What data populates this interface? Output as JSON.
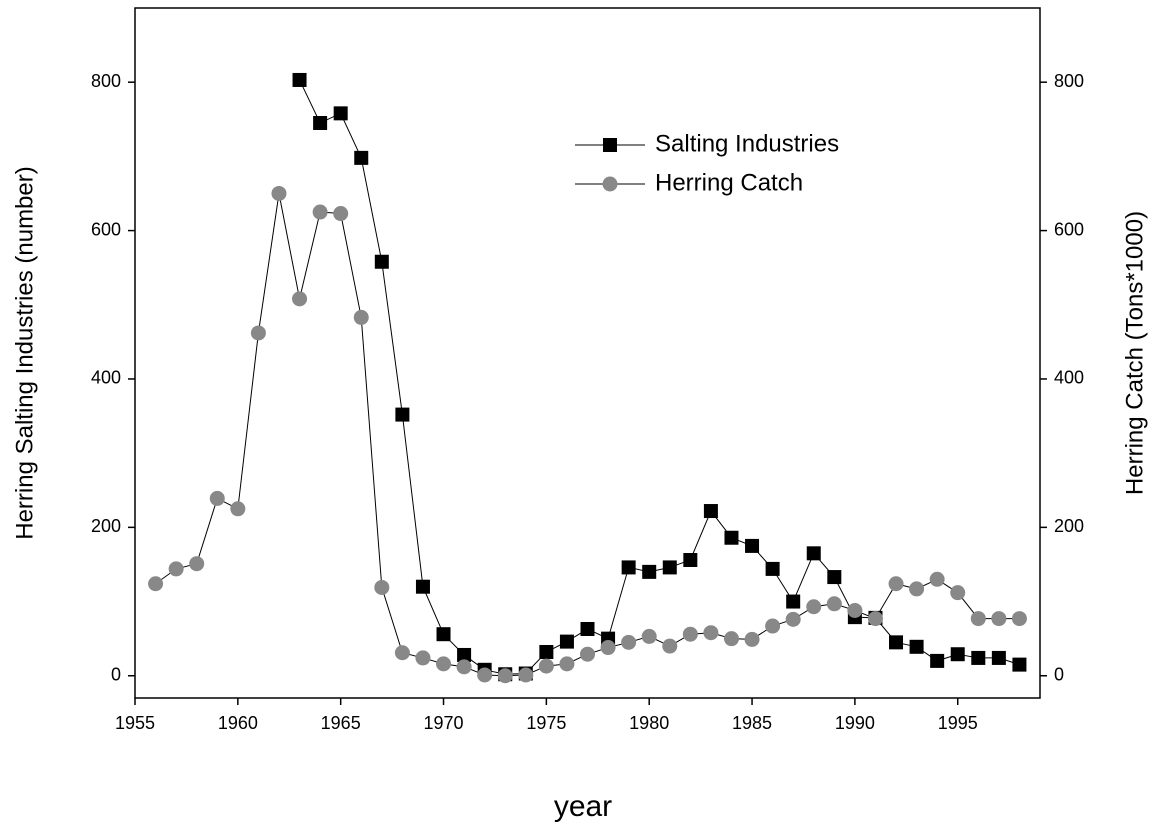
{
  "chart_data": {
    "type": "line",
    "x": [
      1956,
      1957,
      1958,
      1959,
      1960,
      1961,
      1962,
      1963,
      1964,
      1965,
      1966,
      1967,
      1968,
      1969,
      1970,
      1971,
      1972,
      1973,
      1974,
      1975,
      1976,
      1977,
      1978,
      1979,
      1980,
      1981,
      1982,
      1983,
      1984,
      1985,
      1986,
      1987,
      1988,
      1989,
      1990,
      1991,
      1992,
      1993,
      1994,
      1995,
      1996,
      1997,
      1998
    ],
    "series": [
      {
        "name": "Salting Industries",
        "color": "#000000",
        "marker": "square",
        "axis": "y",
        "values": [
          null,
          null,
          null,
          null,
          null,
          null,
          null,
          803,
          745,
          758,
          698,
          558,
          352,
          120,
          56,
          28,
          8,
          2,
          3,
          32,
          46,
          63,
          50,
          146,
          140,
          146,
          156,
          222,
          186,
          175,
          144,
          100,
          165,
          133,
          79,
          78,
          45,
          39,
          20,
          29,
          24,
          24,
          15
        ]
      },
      {
        "name": "Herring Catch",
        "color": "#888888",
        "marker": "circle",
        "axis": "y2",
        "values": [
          124,
          144,
          151,
          239,
          225,
          462,
          650,
          508,
          625,
          623,
          483,
          119,
          31,
          24,
          16,
          12,
          1,
          0,
          1,
          13,
          16,
          29,
          38,
          45,
          53,
          40,
          56,
          58,
          50,
          49,
          67,
          76,
          93,
          97,
          88,
          77,
          124,
          117,
          130,
          112,
          77,
          77,
          77
        ]
      }
    ],
    "xlabel": "year",
    "ylabel": "Herring Salting Industries (number)",
    "y2label": "Herring Catch (Tons*1000)",
    "xlim": [
      1955,
      1999
    ],
    "xticks": [
      1955,
      1960,
      1965,
      1970,
      1975,
      1980,
      1985,
      1990,
      1995
    ],
    "ylim": [
      -30,
      900
    ],
    "yticks": [
      0,
      200,
      400,
      600,
      800
    ],
    "y2lim": [
      -30,
      900
    ],
    "y2ticks": [
      0,
      200,
      400,
      600,
      800
    ],
    "legend": "upper center",
    "grid": false
  }
}
